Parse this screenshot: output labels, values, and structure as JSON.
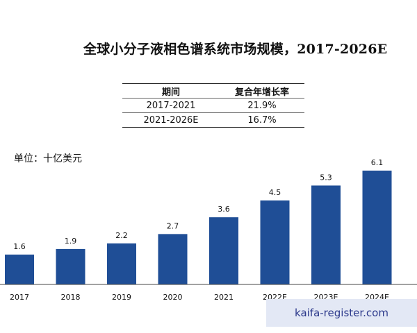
{
  "title": "全球小分子液相色谱系统市场规模，2017-2026E",
  "cagr_table": {
    "headers": [
      "期间",
      "复合年增长率"
    ],
    "rows": [
      [
        "2017-2021",
        "21.9%"
      ],
      [
        "2021-2026E",
        "16.7%"
      ]
    ]
  },
  "unit_label": "单位：十亿美元",
  "watermark": "kaifa-register.com",
  "chart_data": {
    "type": "bar",
    "categories": [
      "2017",
      "2018",
      "2019",
      "2020",
      "2021",
      "2022E",
      "2023E",
      "2024E"
    ],
    "values": [
      1.6,
      1.9,
      2.2,
      2.7,
      3.6,
      4.5,
      5.3,
      6.1
    ],
    "value_labels": [
      "1.6",
      "1.9",
      "2.2",
      "2.7",
      "3.6",
      "4.5",
      "5.3",
      "6.1"
    ],
    "title": "全球小分子液相色谱系统市场规模，2017-2026E",
    "ylabel": "单位：十亿美元",
    "bar_color": "#1f4e96",
    "ylim": [
      0,
      6.5
    ]
  }
}
